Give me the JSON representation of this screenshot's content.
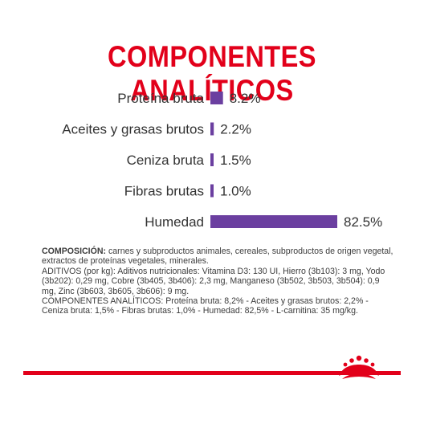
{
  "title": "COMPONENTES ANALÍTICOS",
  "chart_data": {
    "type": "bar",
    "orientation": "horizontal",
    "categories": [
      "Proteína bruta",
      "Aceites y grasas brutos",
      "Ceniza bruta",
      "Fibras brutas",
      "Humedad"
    ],
    "values": [
      8.2,
      2.2,
      1.5,
      1.0,
      82.5
    ],
    "value_labels": [
      "8.2%",
      "2.2%",
      "1.5%",
      "1.0%",
      "82.5%"
    ],
    "unit": "%",
    "xlim": [
      0,
      82.5
    ],
    "grid": false,
    "legend": "none",
    "bar_color": "#6b3fa0"
  },
  "composition": {
    "label": "COMPOSICIÓN:",
    "text": " carnes y subproductos animales, cereales, subproductos de origen vegetal, extractos de proteínas vegetales, minerales.",
    "additives": "ADITIVOS (por kg): Aditivos nutricionales: Vitamina D3: 130 UI, Hierro (3b103): 3 mg, Yodo (3b202): 0,29 mg, Cobre (3b405, 3b406): 2,3 mg, Manganeso (3b502, 3b503, 3b504): 0,9 mg, Zinc (3b603, 3b605, 3b606): 9 mg.",
    "analytical": "COMPONENTES ANALÍTICOS: Proteína bruta: 8,2% - Aceites y grasas brutos: 2,2% - Ceniza bruta: 1,5% - Fibras brutas: 1,0% - Humedad: 82,5% - L-carnitina: 35 mg/kg."
  },
  "brand": {
    "logo": "royal-canin-crown-logo",
    "accent_color": "#e2001a"
  }
}
